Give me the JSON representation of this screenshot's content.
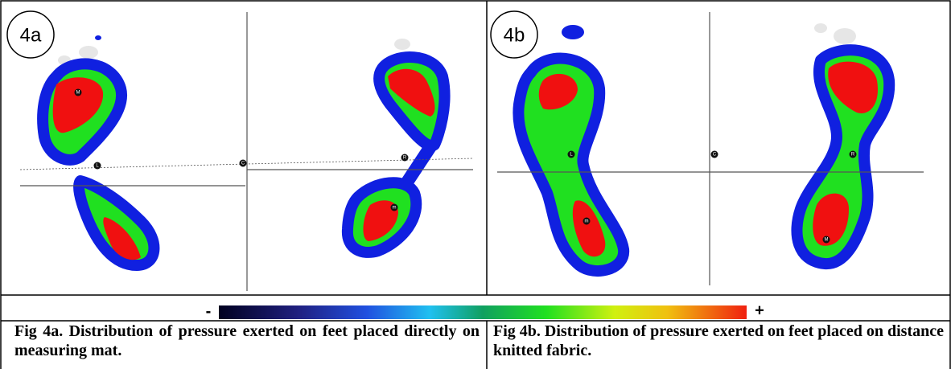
{
  "panels": [
    {
      "label": "4a",
      "markers": [
        "M",
        "L",
        "C",
        "R",
        "m"
      ]
    },
    {
      "label": "4b",
      "markers": [
        "L",
        "C",
        "R",
        "m",
        "M"
      ]
    }
  ],
  "colorbar": {
    "min_label": "-",
    "max_label": "+"
  },
  "captions": [
    "Fig 4a. Distribution of pressure exerted on feet placed directly on measuring mat.",
    "Fig 4b. Distribution of pressure exerted on feet placed on distance knitted fabric."
  ]
}
